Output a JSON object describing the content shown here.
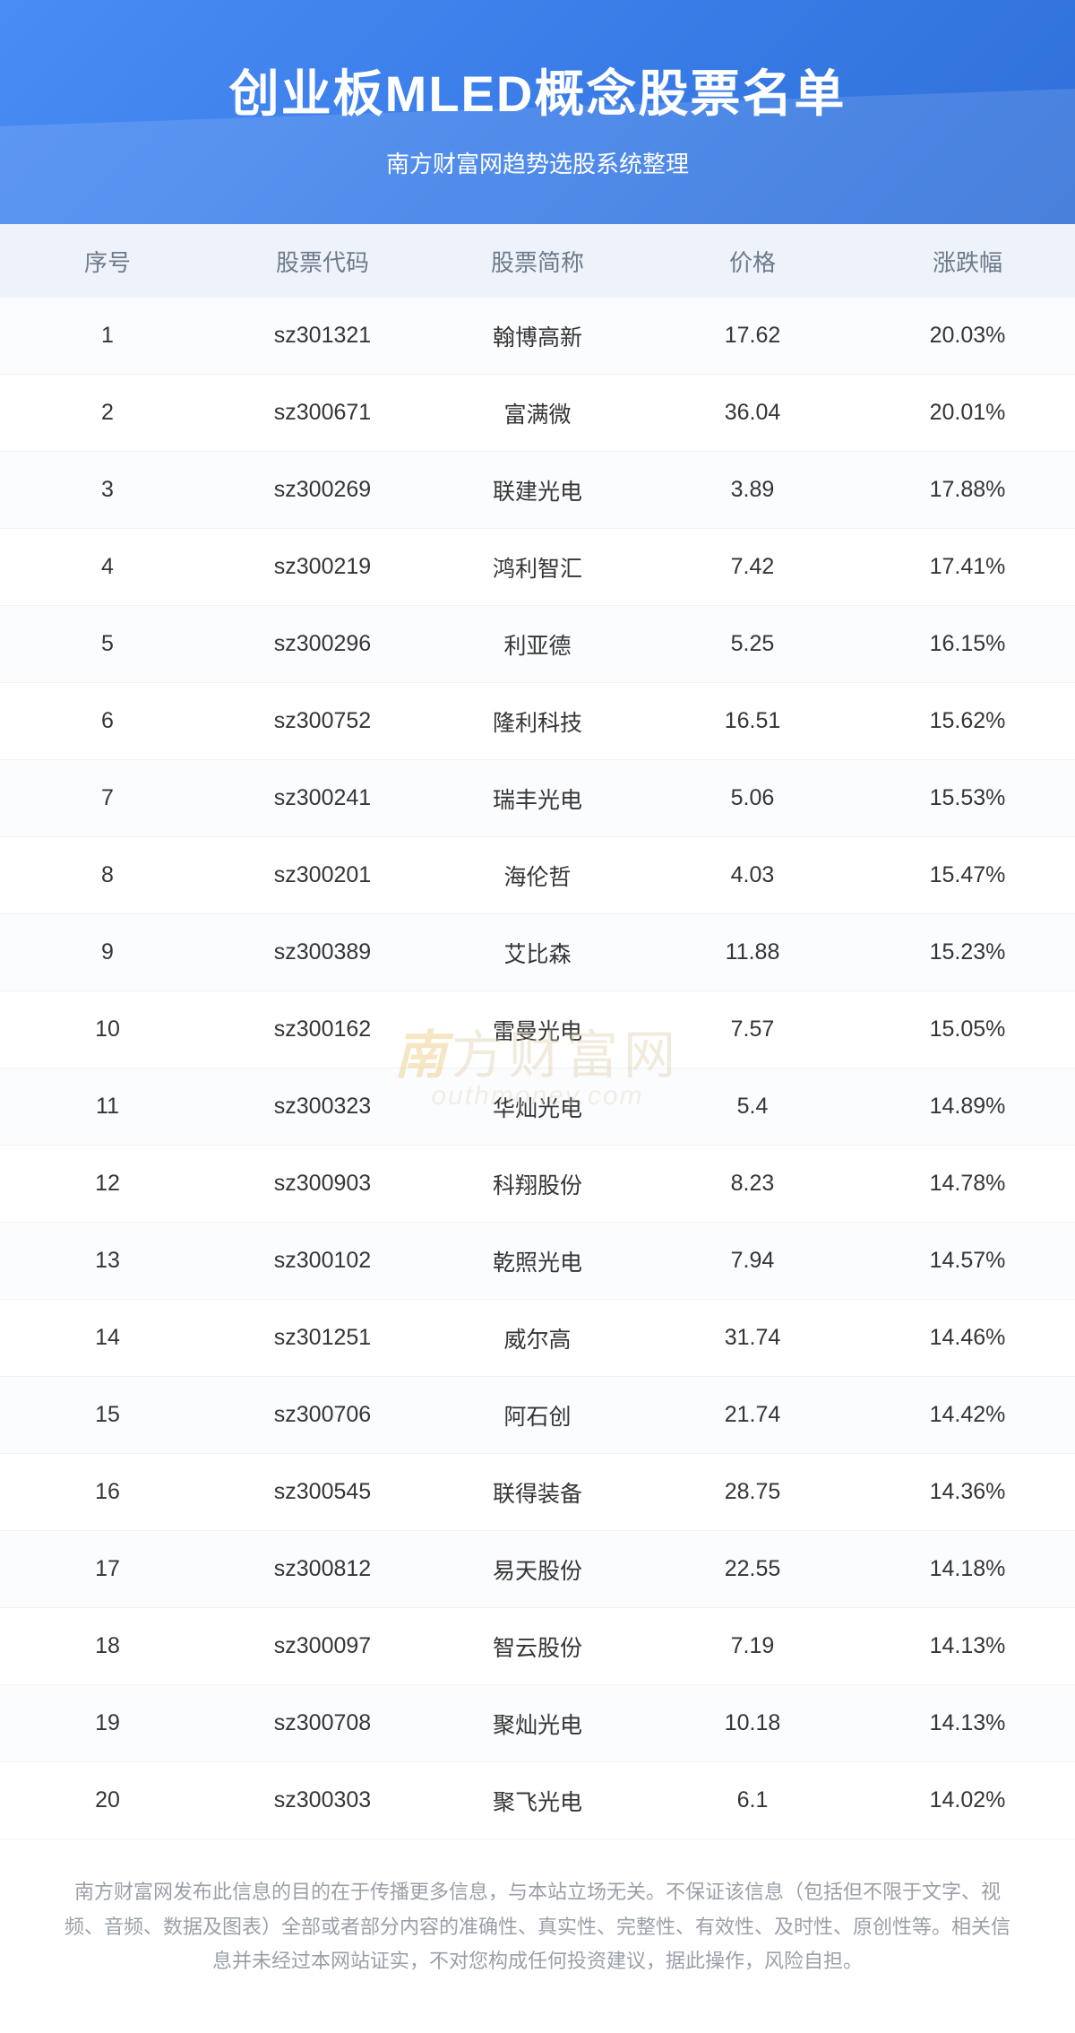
{
  "header": {
    "title": "创业板MLED概念股票名单",
    "subtitle": "南方财富网趋势选股系统整理",
    "bg_gradient_from": "#4a8cf5",
    "bg_gradient_to": "#2f6fd8",
    "title_color": "#ffffff",
    "title_fontsize": 56,
    "subtitle_fontsize": 26
  },
  "table": {
    "header_bg": "#eef3fb",
    "header_color": "#6e7a8a",
    "row_odd_bg": "#fbfcfe",
    "row_even_bg": "#ffffff",
    "cell_color": "#353535",
    "border_color": "#f0f2f5",
    "header_fontsize": 26,
    "cell_fontsize": 25,
    "columns": [
      "序号",
      "股票代码",
      "股票简称",
      "价格",
      "涨跌幅"
    ],
    "rows": [
      [
        "1",
        "sz301321",
        "翰博高新",
        "17.62",
        "20.03%"
      ],
      [
        "2",
        "sz300671",
        "富满微",
        "36.04",
        "20.01%"
      ],
      [
        "3",
        "sz300269",
        "联建光电",
        "3.89",
        "17.88%"
      ],
      [
        "4",
        "sz300219",
        "鸿利智汇",
        "7.42",
        "17.41%"
      ],
      [
        "5",
        "sz300296",
        "利亚德",
        "5.25",
        "16.15%"
      ],
      [
        "6",
        "sz300752",
        "隆利科技",
        "16.51",
        "15.62%"
      ],
      [
        "7",
        "sz300241",
        "瑞丰光电",
        "5.06",
        "15.53%"
      ],
      [
        "8",
        "sz300201",
        "海伦哲",
        "4.03",
        "15.47%"
      ],
      [
        "9",
        "sz300389",
        "艾比森",
        "11.88",
        "15.23%"
      ],
      [
        "10",
        "sz300162",
        "雷曼光电",
        "7.57",
        "15.05%"
      ],
      [
        "11",
        "sz300323",
        "华灿光电",
        "5.4",
        "14.89%"
      ],
      [
        "12",
        "sz300903",
        "科翔股份",
        "8.23",
        "14.78%"
      ],
      [
        "13",
        "sz300102",
        "乾照光电",
        "7.94",
        "14.57%"
      ],
      [
        "14",
        "sz301251",
        "威尔高",
        "31.74",
        "14.46%"
      ],
      [
        "15",
        "sz300706",
        "阿石创",
        "21.74",
        "14.42%"
      ],
      [
        "16",
        "sz300545",
        "联得装备",
        "28.75",
        "14.36%"
      ],
      [
        "17",
        "sz300812",
        "易天股份",
        "22.55",
        "14.18%"
      ],
      [
        "18",
        "sz300097",
        "智云股份",
        "7.19",
        "14.13%"
      ],
      [
        "19",
        "sz300708",
        "聚灿光电",
        "10.18",
        "14.13%"
      ],
      [
        "20",
        "sz300303",
        "聚飞光电",
        "6.1",
        "14.02%"
      ]
    ]
  },
  "watermark": {
    "line1_prefix": "南",
    "line1_rest": "方财富网",
    "line2": "outhmoney.com",
    "color_main": "#d9c7a0",
    "color_accent": "#e8b85a",
    "opacity": 0.35
  },
  "disclaimer": {
    "text": "南方财富网发布此信息的目的在于传播更多信息，与本站立场无关。不保证该信息（包括但不限于文字、视频、音频、数据及图表）全部或者部分内容的准确性、真实性、完整性、有效性、及时性、原创性等。相关信息并未经过本网站证实，不对您构成任何投资建议，据此操作，风险自担。",
    "color": "#9aa0a8",
    "fontsize": 22
  }
}
